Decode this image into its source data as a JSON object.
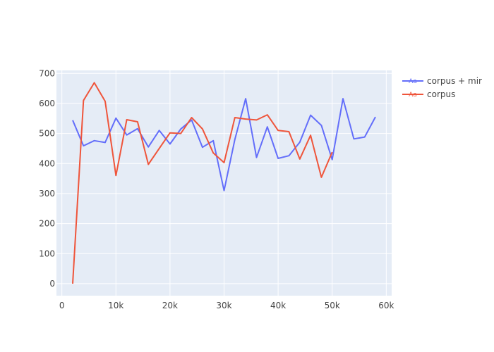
{
  "chart_data": {
    "type": "line",
    "xlim": [
      -1000,
      61000
    ],
    "ylim": [
      -40,
      710
    ],
    "x_ticks": [
      0,
      10000,
      20000,
      30000,
      40000,
      50000,
      60000
    ],
    "x_tick_labels": [
      "0",
      "10k",
      "20k",
      "30k",
      "40k",
      "50k",
      "60k"
    ],
    "y_ticks": [
      0,
      100,
      200,
      300,
      400,
      500,
      600,
      700
    ],
    "y_tick_labels": [
      "0",
      "100",
      "200",
      "300",
      "400",
      "500",
      "600",
      "700"
    ],
    "grid": true,
    "legend_position": "top-right",
    "legend_symbol": "Aa",
    "series": [
      {
        "name": "corpus + mir",
        "color": "#636efa",
        "x": [
          2000,
          4000,
          6000,
          8000,
          10000,
          12000,
          14000,
          16000,
          18000,
          20000,
          22000,
          24000,
          26000,
          28000,
          30000,
          32000,
          34000,
          36000,
          38000,
          40000,
          42000,
          44000,
          46000,
          48000,
          50000,
          52000,
          54000,
          56000,
          58000
        ],
        "y": [
          544,
          459,
          476,
          470,
          551,
          495,
          516,
          455,
          510,
          465,
          515,
          545,
          454,
          476,
          310,
          480,
          616,
          420,
          522,
          417,
          426,
          471,
          561,
          527,
          413,
          616,
          482,
          488,
          555
        ]
      },
      {
        "name": "corpus",
        "color": "#ef553b",
        "x": [
          2000,
          4000,
          6000,
          8000,
          10000,
          12000,
          14000,
          16000,
          18000,
          20000,
          22000,
          24000,
          26000,
          28000,
          30000,
          32000,
          34000,
          36000,
          38000,
          40000,
          42000,
          44000,
          46000,
          48000,
          50000
        ],
        "y": [
          0,
          610,
          669,
          607,
          360,
          546,
          539,
          397,
          450,
          502,
          500,
          553,
          515,
          435,
          403,
          553,
          548,
          545,
          562,
          510,
          506,
          415,
          494,
          354,
          438
        ]
      }
    ]
  }
}
